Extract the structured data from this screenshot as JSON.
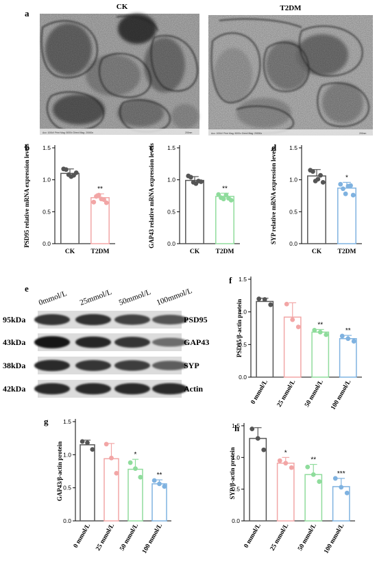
{
  "panel_a": {
    "letter": "a",
    "left_title": "CK",
    "right_title": "T2DM",
    "left_caption": "Acc: 100kV  Print Mag: 5000x  Direct Mag: 20000x",
    "right_caption": "Acc: 100kV  Print Mag: 5000x  Direct Mag: 20000x",
    "scale": "200nm"
  },
  "panel_e": {
    "letter": "e",
    "lanes": [
      "0mmol/L",
      "25mmol/L",
      "50mmol/L",
      "100mmol/L"
    ],
    "rows": [
      {
        "kda": "95kDa",
        "protein": "PSD95",
        "intensity": [
          0.8,
          0.82,
          0.72,
          0.62
        ]
      },
      {
        "kda": "43kDa",
        "protein": "GAP43",
        "intensity": [
          0.98,
          0.88,
          0.8,
          0.5
        ]
      },
      {
        "kda": "38kDa",
        "protein": "SYP",
        "intensity": [
          0.85,
          0.8,
          0.75,
          0.58
        ]
      },
      {
        "kda": "42kDa",
        "protein": "Actin",
        "intensity": [
          0.85,
          0.85,
          0.85,
          0.85
        ]
      }
    ]
  },
  "chart_data": [
    {
      "letter": "b",
      "type": "bar",
      "ylabel": "PSD95 relative mRNA expression levels",
      "categories": [
        "CK",
        "T2DM"
      ],
      "values": [
        1.1,
        0.72
      ],
      "errors": [
        0.07,
        0.06
      ],
      "points": [
        [
          1.17,
          1.16,
          1.08,
          1.05,
          1.07,
          1.11
        ],
        [
          0.65,
          0.74,
          0.76,
          0.7,
          0.69,
          0.64
        ]
      ],
      "significance": [
        "",
        "**"
      ],
      "colors": [
        "#555555",
        "#f2a6a6"
      ],
      "ylim": [
        0.0,
        1.5
      ],
      "yticks": [
        "0.0",
        "0.5",
        "1.0",
        "1.5"
      ]
    },
    {
      "letter": "c",
      "type": "bar",
      "ylabel": "GAP43 relative mRNA expression levels",
      "categories": [
        "CK",
        "T2DM"
      ],
      "values": [
        0.99,
        0.74
      ],
      "errors": [
        0.06,
        0.05
      ],
      "points": [
        [
          1.06,
          1.04,
          0.96,
          0.94,
          0.98,
          0.97
        ],
        [
          0.77,
          0.72,
          0.7,
          0.76,
          0.71,
          0.68
        ]
      ],
      "significance": [
        "",
        "**"
      ],
      "colors": [
        "#555555",
        "#8fdc9c"
      ],
      "ylim": [
        0.0,
        1.5
      ],
      "yticks": [
        "0.0",
        "0.5",
        "1.0",
        "1.5"
      ]
    },
    {
      "letter": "d",
      "type": "bar",
      "ylabel": "SYP relative mRNA expression levels",
      "categories": [
        "CK",
        "T2DM"
      ],
      "values": [
        1.06,
        0.87
      ],
      "errors": [
        0.1,
        0.09
      ],
      "points": [
        [
          1.15,
          1.13,
          0.98,
          1.01,
          1.07,
          0.96
        ],
        [
          0.93,
          0.86,
          0.78,
          0.9,
          0.91,
          0.76
        ]
      ],
      "significance": [
        "",
        "*"
      ],
      "colors": [
        "#555555",
        "#7fb2e0"
      ],
      "ylim": [
        0.0,
        1.5
      ],
      "yticks": [
        "0.0",
        "0.5",
        "1.0",
        "1.5"
      ]
    },
    {
      "letter": "f",
      "type": "bar",
      "ylabel": "PSD95/β-actin protein",
      "categories": [
        "0 mmol/L",
        "25 mmol/L",
        "50 mmol/L",
        "100 mmol/L"
      ],
      "values": [
        1.16,
        0.92,
        0.69,
        0.59
      ],
      "errors": [
        0.05,
        0.22,
        0.04,
        0.05
      ],
      "points": [
        [
          1.2,
          1.19,
          1.11
        ],
        [
          1.12,
          0.88,
          0.77
        ],
        [
          0.72,
          0.69,
          0.65
        ],
        [
          0.63,
          0.59,
          0.55
        ]
      ],
      "significance": [
        "",
        "",
        "**",
        "**"
      ],
      "colors": [
        "#555555",
        "#f2a6a6",
        "#8fdc9c",
        "#7fb2e0"
      ],
      "ylim": [
        0.0,
        1.5
      ],
      "yticks": [
        "0.0",
        "0.5",
        "1.0",
        "1.5"
      ]
    },
    {
      "letter": "g",
      "type": "bar",
      "ylabel": "GAP43/β-actin protein",
      "categories": [
        "0 mmol/L",
        "25 mmol/L",
        "50 mmol/L",
        "100 mmol/L"
      ],
      "values": [
        1.15,
        0.94,
        0.78,
        0.56
      ],
      "errors": [
        0.07,
        0.23,
        0.15,
        0.06
      ],
      "points": [
        [
          1.2,
          1.18,
          1.08
        ],
        [
          1.16,
          0.95,
          0.72
        ],
        [
          0.88,
          0.79,
          0.66
        ],
        [
          0.61,
          0.56,
          0.52
        ]
      ],
      "significance": [
        "",
        "",
        "*",
        "**"
      ],
      "colors": [
        "#555555",
        "#f2a6a6",
        "#8fdc9c",
        "#7fb2e0"
      ],
      "ylim": [
        0.0,
        1.5
      ],
      "yticks": [
        "0.0",
        "0.5",
        "1.0",
        "1.5"
      ]
    },
    {
      "letter": "h",
      "type": "bar",
      "ylabel": "SYP/β-actin protein",
      "categories": [
        "0 mmol/L",
        "25 mmol/L",
        "50 mmol/L",
        "100 mmol/L"
      ],
      "values": [
        1.3,
        0.91,
        0.73,
        0.54
      ],
      "errors": [
        0.17,
        0.09,
        0.16,
        0.13
      ],
      "points": [
        [
          1.45,
          1.3,
          1.12
        ],
        [
          0.95,
          0.91,
          0.84
        ],
        [
          0.85,
          0.73,
          0.62
        ],
        [
          0.67,
          0.53,
          0.44
        ]
      ],
      "significance": [
        "",
        "*",
        "**",
        "***"
      ],
      "colors": [
        "#555555",
        "#f2a6a6",
        "#8fdc9c",
        "#7fb2e0"
      ],
      "ylim": [
        0.0,
        1.5
      ],
      "yticks": [
        "0.0",
        "0.5",
        "1.0",
        "1.5"
      ]
    }
  ]
}
